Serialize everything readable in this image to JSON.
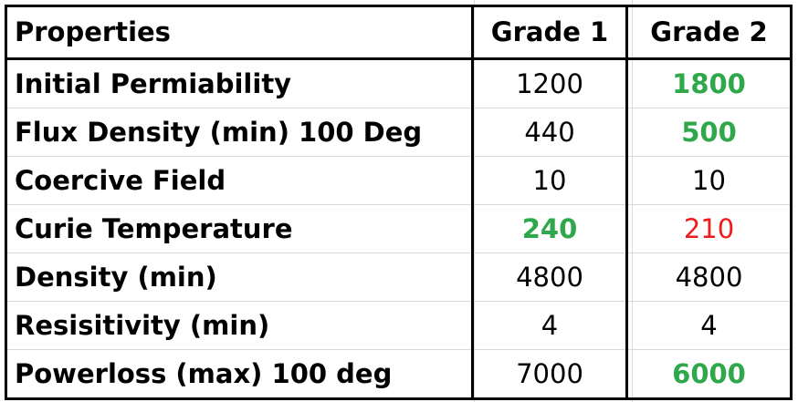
{
  "table": {
    "headers": {
      "property": "Properties",
      "grade1": "Grade 1",
      "grade2": "Grade 2"
    },
    "rows": [
      {
        "property": "Initial Permiability",
        "grade1": "1200",
        "grade2": "1800",
        "grade1_status": "neutral",
        "grade2_status": "better"
      },
      {
        "property": "Flux Density (min) 100 Deg",
        "grade1": "440",
        "grade2": "500",
        "grade1_status": "neutral",
        "grade2_status": "better"
      },
      {
        "property": "Coercive Field",
        "grade1": "10",
        "grade2": "10",
        "grade1_status": "neutral",
        "grade2_status": "neutral"
      },
      {
        "property": "Curie Temperature",
        "grade1": "240",
        "grade2": "210",
        "grade1_status": "better",
        "grade2_status": "worse"
      },
      {
        "property": "Density (min)",
        "grade1": "4800",
        "grade2": "4800",
        "grade1_status": "neutral",
        "grade2_status": "neutral"
      },
      {
        "property": "Resisitivity (min)",
        "grade1": "4",
        "grade2": "4",
        "grade1_status": "neutral",
        "grade2_status": "neutral"
      },
      {
        "property": "Powerloss (max) 100 deg",
        "grade1": "7000",
        "grade2": "6000",
        "grade1_status": "neutral",
        "grade2_status": "better"
      }
    ]
  },
  "colors": {
    "better": "#2ea84a",
    "worse": "#ee1c1c",
    "neutral": "#000000",
    "border": "#000000",
    "gridline": "#d9d9d9"
  }
}
